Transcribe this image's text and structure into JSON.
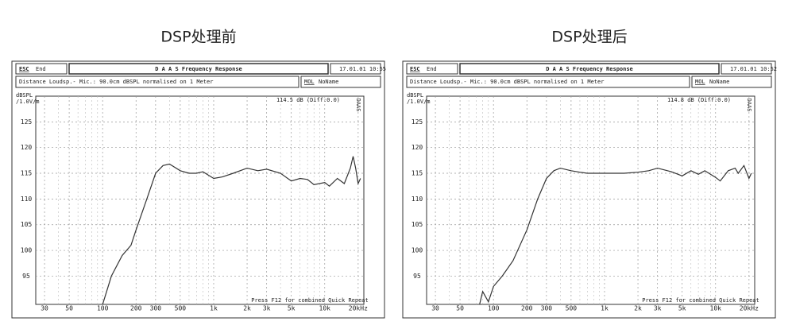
{
  "chart_data": [
    {
      "type": "line",
      "title": "DSP处理前",
      "toolbar": [
        "ESC",
        "End"
      ],
      "window_title": "D A A S   Frequency Response",
      "timestamp": "17.01.01 10:55",
      "info": "Distance Loudsp.- Mic.: 90.0cm dBSPL normalised on 1 Meter",
      "mic_label": "MOL",
      "mic_name": "NoName",
      "annotation": "114.5 dB (Diff:0.0)",
      "footer": "Press F12 for combined Quick Repeat",
      "ylabel": [
        "dBSPL",
        "/1.0V/m"
      ],
      "watermark": "DAAS",
      "xscale": "log",
      "grid": true,
      "xlim": [
        25,
        22500
      ],
      "ylim": [
        89.5,
        130
      ],
      "xticks": [
        30,
        50,
        100,
        200,
        300,
        500,
        {
          "value": 1000,
          "label": "1k"
        },
        {
          "value": 2000,
          "label": "2k"
        },
        {
          "value": 3000,
          "label": "3k"
        },
        {
          "value": 5000,
          "label": "5k"
        },
        {
          "value": 10000,
          "label": "10k"
        },
        {
          "value": 20000,
          "label": "20kHz"
        }
      ],
      "xminor": [
        40,
        60,
        70,
        80,
        90,
        400,
        600,
        700,
        800,
        900,
        4000,
        6000,
        7000,
        8000,
        9000
      ],
      "yticks": [
        95,
        100,
        105,
        110,
        115,
        120,
        125
      ],
      "x": [
        100,
        120,
        150,
        180,
        200,
        250,
        300,
        350,
        400,
        500,
        600,
        700,
        800,
        1000,
        1200,
        1500,
        2000,
        2500,
        3000,
        4000,
        5000,
        6000,
        7000,
        8000,
        10000,
        11000,
        13000,
        15000,
        17000,
        18000,
        19000,
        20000,
        21000
      ],
      "series": [
        {
          "color": "#333333",
          "values": [
            89.5,
            95,
            99,
            101,
            104,
            110,
            115,
            116.5,
            116.8,
            115.5,
            115,
            115,
            115.3,
            114,
            114.3,
            115,
            116,
            115.5,
            115.8,
            115,
            113.5,
            114,
            113.8,
            112.8,
            113.2,
            112.5,
            114,
            113,
            116,
            118.3,
            116,
            113,
            114
          ]
        }
      ]
    },
    {
      "type": "line",
      "title": "DSP处理后",
      "toolbar": [
        "ESC",
        "End"
      ],
      "window_title": "D A A S   Frequency Response",
      "timestamp": "17.01.01 10:52",
      "info": "Distance Loudsp.- Mic.: 90.0cm dBSPL normalised on 1 Meter",
      "mic_label": "MOL",
      "mic_name": "NoName",
      "annotation": "114.8 dB (Diff:0.0)",
      "footer": "Press F12 for combined Quick Repeat",
      "ylabel": [
        "dBSPL",
        "/1.0V/m"
      ],
      "watermark": "DAAS",
      "xscale": "log",
      "grid": true,
      "xlim": [
        25,
        22500
      ],
      "ylim": [
        89.5,
        130
      ],
      "xticks": [
        30,
        50,
        100,
        200,
        300,
        500,
        {
          "value": 1000,
          "label": "1k"
        },
        {
          "value": 2000,
          "label": "2k"
        },
        {
          "value": 3000,
          "label": "3k"
        },
        {
          "value": 5000,
          "label": "5k"
        },
        {
          "value": 10000,
          "label": "10k"
        },
        {
          "value": 20000,
          "label": "20kHz"
        }
      ],
      "xminor": [
        40,
        60,
        70,
        80,
        90,
        400,
        600,
        700,
        800,
        900,
        4000,
        6000,
        7000,
        8000,
        9000
      ],
      "yticks": [
        95,
        100,
        105,
        110,
        115,
        120,
        125
      ],
      "x": [
        75,
        80,
        90,
        100,
        120,
        150,
        200,
        250,
        300,
        350,
        400,
        500,
        600,
        700,
        1000,
        1500,
        2000,
        2500,
        3000,
        4000,
        5000,
        6000,
        7000,
        8000,
        10000,
        11000,
        13000,
        15000,
        16000,
        18000,
        20000,
        21000
      ],
      "series": [
        {
          "color": "#333333",
          "values": [
            89.5,
            92,
            90,
            93,
            95,
            98,
            104,
            110,
            114,
            115.5,
            116,
            115.5,
            115.2,
            115,
            115,
            115,
            115.2,
            115.5,
            116,
            115.3,
            114.5,
            115.5,
            114.8,
            115.5,
            114.2,
            113.5,
            115.5,
            116,
            115,
            116.5,
            114,
            115
          ]
        }
      ]
    }
  ]
}
